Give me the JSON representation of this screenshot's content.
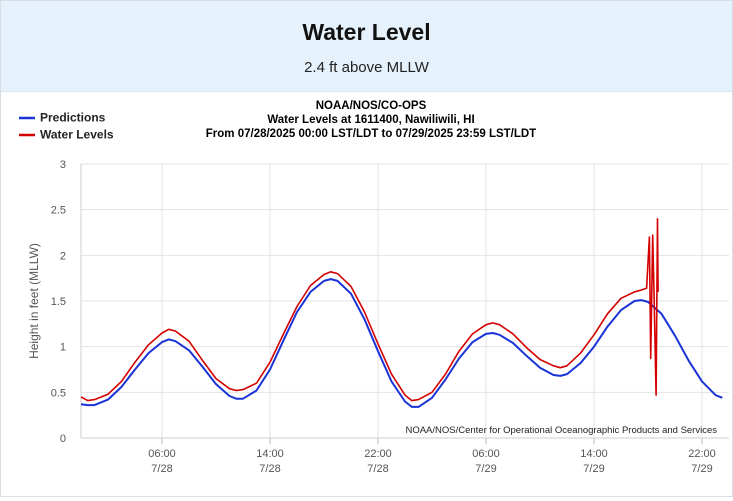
{
  "widget": {
    "title": "Water Level",
    "subtitle": "2.4 ft above MLLW"
  },
  "chart_data": {
    "type": "line",
    "title_lines": [
      "NOAA/NOS/CO-OPS",
      "Water Levels at 1611400, Nawiliwili, HI",
      "From 07/28/2025 00:00 LST/LDT to 07/29/2025 23:59 LST/LDT"
    ],
    "ylabel": "Height in feet (MLLW)",
    "ylim": [
      0,
      3
    ],
    "yticks": [
      0,
      0.5,
      1,
      1.5,
      2,
      2.5,
      3
    ],
    "ytick_labels": [
      "0",
      "0.5",
      "1",
      "1.5",
      "2",
      "2.5",
      "3"
    ],
    "xlim_hours": [
      0,
      48
    ],
    "xticks": [
      {
        "hour": 6,
        "time": "06:00",
        "date": "7/28"
      },
      {
        "hour": 14,
        "time": "14:00",
        "date": "7/28"
      },
      {
        "hour": 22,
        "time": "22:00",
        "date": "7/28"
      },
      {
        "hour": 30,
        "time": "06:00",
        "date": "7/29"
      },
      {
        "hour": 38,
        "time": "14:00",
        "date": "7/29"
      },
      {
        "hour": 46,
        "time": "22:00",
        "date": "7/29"
      }
    ],
    "grid": true,
    "legend_position": "top-left",
    "credit": "NOAA/NOS/Center for Operational Oceanographic Products and Services",
    "series": [
      {
        "name": "Predictions",
        "color": "#1a33d6",
        "points": [
          [
            0,
            0.37
          ],
          [
            0.5,
            0.36
          ],
          [
            1,
            0.36
          ],
          [
            2,
            0.42
          ],
          [
            3,
            0.56
          ],
          [
            4,
            0.75
          ],
          [
            5,
            0.93
          ],
          [
            6,
            1.05
          ],
          [
            6.5,
            1.08
          ],
          [
            7,
            1.06
          ],
          [
            8,
            0.96
          ],
          [
            9,
            0.78
          ],
          [
            10,
            0.59
          ],
          [
            11,
            0.46
          ],
          [
            11.5,
            0.43
          ],
          [
            12,
            0.43
          ],
          [
            13,
            0.52
          ],
          [
            14,
            0.75
          ],
          [
            15,
            1.07
          ],
          [
            16,
            1.38
          ],
          [
            17,
            1.6
          ],
          [
            18,
            1.72
          ],
          [
            18.5,
            1.74
          ],
          [
            19,
            1.72
          ],
          [
            20,
            1.58
          ],
          [
            21,
            1.3
          ],
          [
            22,
            0.95
          ],
          [
            23,
            0.62
          ],
          [
            24,
            0.4
          ],
          [
            24.5,
            0.34
          ],
          [
            25,
            0.34
          ],
          [
            26,
            0.44
          ],
          [
            27,
            0.64
          ],
          [
            28,
            0.87
          ],
          [
            29,
            1.05
          ],
          [
            30,
            1.14
          ],
          [
            30.5,
            1.15
          ],
          [
            31,
            1.13
          ],
          [
            32,
            1.04
          ],
          [
            33,
            0.9
          ],
          [
            34,
            0.77
          ],
          [
            35,
            0.69
          ],
          [
            35.5,
            0.68
          ],
          [
            36,
            0.7
          ],
          [
            37,
            0.82
          ],
          [
            38,
            1.0
          ],
          [
            39,
            1.22
          ],
          [
            40,
            1.4
          ],
          [
            41,
            1.5
          ],
          [
            41.5,
            1.51
          ],
          [
            42,
            1.49
          ],
          [
            43,
            1.36
          ],
          [
            44,
            1.12
          ],
          [
            45,
            0.85
          ],
          [
            46,
            0.62
          ],
          [
            47,
            0.47
          ],
          [
            47.5,
            0.44
          ]
        ]
      },
      {
        "name": "Water Levels",
        "color": "#d40000",
        "points": [
          [
            0,
            0.45
          ],
          [
            0.5,
            0.41
          ],
          [
            1,
            0.42
          ],
          [
            2,
            0.48
          ],
          [
            3,
            0.62
          ],
          [
            4,
            0.83
          ],
          [
            5,
            1.02
          ],
          [
            6,
            1.15
          ],
          [
            6.5,
            1.19
          ],
          [
            7,
            1.17
          ],
          [
            8,
            1.06
          ],
          [
            9,
            0.85
          ],
          [
            10,
            0.65
          ],
          [
            11,
            0.54
          ],
          [
            11.5,
            0.52
          ],
          [
            12,
            0.53
          ],
          [
            13,
            0.6
          ],
          [
            14,
            0.83
          ],
          [
            15,
            1.14
          ],
          [
            16,
            1.44
          ],
          [
            17,
            1.67
          ],
          [
            18,
            1.79
          ],
          [
            18.5,
            1.82
          ],
          [
            19,
            1.8
          ],
          [
            20,
            1.66
          ],
          [
            21,
            1.38
          ],
          [
            22,
            1.03
          ],
          [
            23,
            0.7
          ],
          [
            24,
            0.47
          ],
          [
            24.5,
            0.41
          ],
          [
            25,
            0.42
          ],
          [
            26,
            0.5
          ],
          [
            27,
            0.7
          ],
          [
            28,
            0.95
          ],
          [
            29,
            1.14
          ],
          [
            30,
            1.24
          ],
          [
            30.5,
            1.26
          ],
          [
            31,
            1.24
          ],
          [
            32,
            1.14
          ],
          [
            33,
            0.99
          ],
          [
            34,
            0.86
          ],
          [
            35,
            0.79
          ],
          [
            35.5,
            0.77
          ],
          [
            36,
            0.79
          ],
          [
            37,
            0.93
          ],
          [
            38,
            1.13
          ],
          [
            39,
            1.36
          ],
          [
            40,
            1.53
          ],
          [
            41,
            1.6
          ],
          [
            41.5,
            1.62
          ],
          [
            41.9,
            1.64
          ],
          [
            42.1,
            2.2
          ],
          [
            42.2,
            0.87
          ],
          [
            42.35,
            2.22
          ],
          [
            42.45,
            1.55
          ],
          [
            42.6,
            0.47
          ],
          [
            42.7,
            2.4
          ],
          [
            42.75,
            1.6
          ]
        ]
      }
    ]
  }
}
